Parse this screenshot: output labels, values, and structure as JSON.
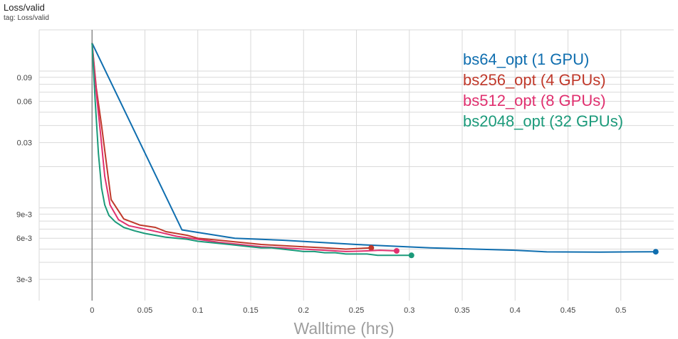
{
  "header": {
    "title": "Loss/valid",
    "tag": "tag: Loss/valid"
  },
  "chart_data": {
    "type": "line",
    "title": "Loss/valid",
    "xlabel": "Walltime (hrs)",
    "ylabel": "",
    "yscale": "log",
    "xlim": [
      -0.05,
      0.55
    ],
    "ylim": [
      0.0021,
      0.2
    ],
    "xticks": [
      0,
      0.05,
      0.1,
      0.15,
      0.2,
      0.25,
      0.3,
      0.35,
      0.4,
      0.45,
      0.5
    ],
    "xtick_labels": [
      "0",
      "0.05",
      "0.1",
      "0.15",
      "0.2",
      "0.25",
      "0.3",
      "0.35",
      "0.4",
      "0.45",
      "0.5"
    ],
    "yticks": [
      0.09,
      0.06,
      0.03,
      0.009,
      0.006,
      0.003
    ],
    "ytick_labels": [
      "0.09",
      "0.06",
      "0.03",
      "9e-3",
      "6e-3",
      "3e-3"
    ],
    "grid": true,
    "legend_position": "top-right",
    "series": [
      {
        "name": "bs64_opt (1 GPU)",
        "color": "#0f6eaf",
        "x": [
          0,
          0.085,
          0.135,
          0.18,
          0.25,
          0.32,
          0.4,
          0.43,
          0.48,
          0.533
        ],
        "y": [
          0.16,
          0.0069,
          0.006,
          0.0058,
          0.0054,
          0.0051,
          0.0049,
          0.00477,
          0.00475,
          0.00478
        ]
      },
      {
        "name": "bs256_opt (4 GPUs)",
        "color": "#c0392b",
        "x": [
          0,
          0.004,
          0.009,
          0.014,
          0.018,
          0.03,
          0.045,
          0.06,
          0.07,
          0.09,
          0.1,
          0.12,
          0.14,
          0.16,
          0.18,
          0.2,
          0.22,
          0.24,
          0.264
        ],
        "y": [
          0.16,
          0.075,
          0.04,
          0.02,
          0.0115,
          0.0083,
          0.0075,
          0.0072,
          0.0067,
          0.0063,
          0.006,
          0.0058,
          0.0056,
          0.0054,
          0.0053,
          0.0052,
          0.0051,
          0.005,
          0.0051
        ]
      },
      {
        "name": "bs512_opt (8 GPUs)",
        "color": "#e0306f",
        "x": [
          0,
          0.004,
          0.008,
          0.012,
          0.017,
          0.025,
          0.035,
          0.05,
          0.065,
          0.08,
          0.1,
          0.12,
          0.14,
          0.16,
          0.18,
          0.2,
          0.22,
          0.24,
          0.26,
          0.272,
          0.288
        ],
        "y": [
          0.16,
          0.07,
          0.035,
          0.017,
          0.0105,
          0.0082,
          0.0074,
          0.007,
          0.0066,
          0.0062,
          0.0059,
          0.0056,
          0.0054,
          0.0052,
          0.0051,
          0.005,
          0.0049,
          0.0048,
          0.00485,
          0.0049,
          0.00485
        ]
      },
      {
        "name": "bs2048_opt (32 GPUs)",
        "color": "#1b9a7a",
        "x": [
          0,
          0.003,
          0.006,
          0.009,
          0.012,
          0.016,
          0.022,
          0.03,
          0.04,
          0.05,
          0.06,
          0.07,
          0.08,
          0.09,
          0.1,
          0.11,
          0.12,
          0.13,
          0.14,
          0.15,
          0.16,
          0.17,
          0.18,
          0.19,
          0.2,
          0.21,
          0.22,
          0.23,
          0.24,
          0.25,
          0.26,
          0.27,
          0.28,
          0.29,
          0.302
        ],
        "y": [
          0.16,
          0.06,
          0.025,
          0.014,
          0.0105,
          0.0088,
          0.0079,
          0.0072,
          0.0068,
          0.0065,
          0.0063,
          0.0061,
          0.006,
          0.0059,
          0.0057,
          0.0056,
          0.0055,
          0.0054,
          0.0053,
          0.0052,
          0.0051,
          0.0051,
          0.005,
          0.0049,
          0.0048,
          0.0048,
          0.0047,
          0.0047,
          0.0046,
          0.0046,
          0.0046,
          0.0045,
          0.0045,
          0.0045,
          0.0045
        ]
      }
    ]
  }
}
